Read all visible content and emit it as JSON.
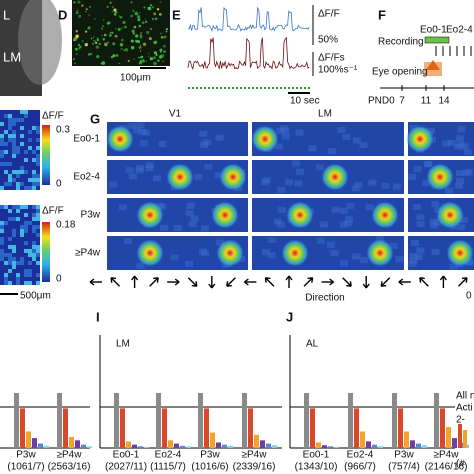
{
  "panel_a": {
    "label1": "L",
    "label2": "LM"
  },
  "panel_d": {
    "letter": "D",
    "scale": "100μm"
  },
  "panel_e": {
    "letter": "E",
    "trace1_unit": "ΔF/F",
    "trace1_scale": "50%",
    "trace2_unit": "ΔF/Fs",
    "trace2_scale": "100%s⁻¹",
    "time_scale": "10 sec"
  },
  "panel_f": {
    "letter": "F",
    "stages": [
      "Eo0-1",
      "Eo2-4"
    ],
    "recording": "Recording",
    "eye_opening": "Eye opening",
    "ages": [
      "PND0",
      7,
      11,
      14
    ]
  },
  "maps": [
    {
      "unit": "ΔF/F",
      "max": 0.3,
      "min": 0
    },
    {
      "unit": "ΔF/F",
      "max": 0.18,
      "min": 0
    }
  ],
  "map_scale": "500μm",
  "panel_g": {
    "letter": "G",
    "columns": [
      "V1",
      "LM"
    ],
    "rows": [
      "Eo0-1",
      "Eo2-4",
      "P3w",
      "≥P4w"
    ],
    "x_label": "Direction",
    "extra": "0"
  },
  "bar_chart": {
    "type": "bar",
    "ylim": [
      0,
      100
    ],
    "colors": [
      "#8a8a8a",
      "#d9482b",
      "#f0a32e",
      "#6b3fa3",
      "#5b86cf",
      "#78d3e3"
    ],
    "panels": [
      {
        "groups": [
          {
            "name": "P3w",
            "count": "(1061/7)",
            "values": [
              100,
              72,
              30,
              18,
              8,
              4
            ]
          },
          {
            "name": "≥P4w",
            "count": "(2563/16)",
            "values": [
              100,
              72,
              20,
              14,
              6,
              3
            ]
          }
        ]
      },
      {
        "letter": "I",
        "title": "LM",
        "groups": [
          {
            "name": "Eo0-1",
            "count": "(2027/11)",
            "values": [
              100,
              72,
              12,
              6,
              3,
              2
            ]
          },
          {
            "name": "Eo2-4",
            "count": "(1115/7)",
            "values": [
              100,
              72,
              14,
              8,
              4,
              3
            ]
          },
          {
            "name": "P3w",
            "count": "(1016/6)",
            "values": [
              100,
              72,
              28,
              10,
              6,
              4
            ]
          },
          {
            "name": "≥P4w",
            "count": "(2339/16)",
            "values": [
              100,
              72,
              24,
              14,
              8,
              5
            ]
          }
        ]
      },
      {
        "letter": "J",
        "title": "AL",
        "groups": [
          {
            "name": "Eo0-1",
            "count": "(1343/10)",
            "values": [
              100,
              72,
              10,
              5,
              3,
              2
            ]
          },
          {
            "name": "Eo2-4",
            "count": "(966/7)",
            "values": [
              100,
              72,
              30,
              12,
              6,
              3
            ]
          },
          {
            "name": "P3w",
            "count": "(757/4)",
            "values": [
              100,
              72,
              30,
              14,
              8,
              5
            ]
          },
          {
            "name": "≥P4w",
            "count": "(2146/16)",
            "values": [
              100,
              72,
              38,
              18,
              10,
              6
            ]
          }
        ]
      }
    ],
    "legend": [
      "All n",
      "Acti",
      "2-",
      "(#"
    ]
  }
}
